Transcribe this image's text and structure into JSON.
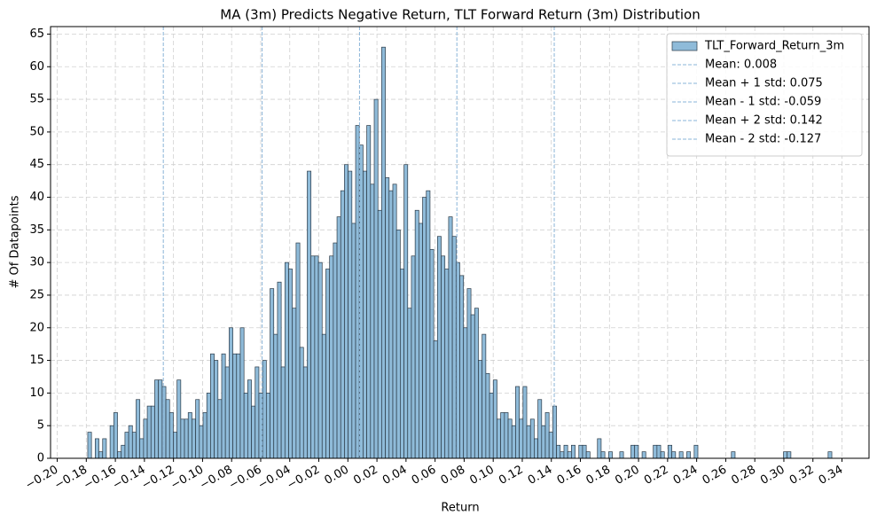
{
  "chart_data": {
    "type": "histogram",
    "title": "MA (3m) Predicts Negative Return, TLT Forward Return (3m) Distribution",
    "xlabel": "Return",
    "ylabel": "# Of Datapoints",
    "bins": [
      -0.179,
      -0.17644,
      -0.17388,
      -0.17132,
      -0.16876,
      -0.1662,
      -0.16364,
      -0.16108,
      -0.15852,
      -0.15596,
      -0.1534,
      -0.15084,
      -0.14828,
      -0.14572,
      -0.14316,
      -0.1406,
      -0.13804,
      -0.13548,
      -0.13292,
      -0.13036,
      -0.1278,
      -0.12524,
      -0.12268,
      -0.12012,
      -0.11756,
      -0.115,
      -0.11244,
      -0.10988,
      -0.10732,
      -0.10476,
      -0.1022,
      -0.09964,
      -0.09708,
      -0.09452,
      -0.09196,
      -0.0894,
      -0.08684,
      -0.08428,
      -0.08172,
      -0.07916,
      -0.0766,
      -0.07404,
      -0.07148,
      -0.06892,
      -0.06636,
      -0.0638,
      -0.06124,
      -0.05868,
      -0.05612,
      -0.05356,
      -0.051,
      -0.04844,
      -0.04588,
      -0.04332,
      -0.04076,
      -0.0382,
      -0.03564,
      -0.03308,
      -0.03052,
      -0.02796,
      -0.0254,
      -0.02284,
      -0.02028,
      -0.01772,
      -0.01516,
      -0.0126,
      -0.01004,
      -0.00748,
      -0.00492,
      -0.00236,
      0.0002,
      0.00276,
      0.00532,
      0.00788,
      0.01044,
      0.013,
      0.01556,
      0.01812,
      0.02068,
      0.02324,
      0.0258,
      0.02836,
      0.03092,
      0.03348,
      0.03604,
      0.0386,
      0.04116,
      0.04372,
      0.04628,
      0.04884,
      0.0514,
      0.05396,
      0.05652,
      0.05908,
      0.06164,
      0.0642,
      0.06676,
      0.06932,
      0.07188,
      0.07444,
      0.077,
      0.07956,
      0.08212,
      0.08468,
      0.08724,
      0.0898,
      0.09236,
      0.09492,
      0.09748,
      0.10004,
      0.1026,
      0.10516,
      0.10772,
      0.11028,
      0.11284,
      0.1154,
      0.11796,
      0.12052,
      0.12308,
      0.12564,
      0.1282,
      0.13076,
      0.13332,
      0.13588,
      0.13844,
      0.141,
      0.14356,
      0.14612,
      0.14868,
      0.15124,
      0.1538,
      0.15636,
      0.15892,
      0.16148,
      0.16404,
      0.1666,
      0.16916,
      0.17172,
      0.17428,
      0.17684,
      0.1794,
      0.18196,
      0.18452,
      0.18708,
      0.18964,
      0.1922,
      0.19476,
      0.19732,
      0.19988,
      0.20244,
      0.205,
      0.20756,
      0.21012,
      0.21268,
      0.21524,
      0.2178,
      0.22036,
      0.22292,
      0.22548,
      0.22804,
      0.2306,
      0.23316,
      0.23572,
      0.23828,
      0.24084,
      0.2434,
      0.24596,
      0.24852,
      0.25108,
      0.25364,
      0.2562,
      0.25876,
      0.26132,
      0.26388,
      0.26644,
      0.269,
      0.27156,
      0.27412,
      0.27668,
      0.27924,
      0.2818,
      0.28436,
      0.28692,
      0.28948,
      0.29204,
      0.2946,
      0.29716,
      0.29972,
      0.30228,
      0.30484,
      0.3074,
      0.30996,
      0.31252,
      0.31508,
      0.31764,
      0.3202,
      0.32276,
      0.32532,
      0.32788,
      0.33044,
      0.333
    ],
    "series": [
      {
        "name": "TLT_Forward_Return_3m",
        "color": "#8fbbd9",
        "values": [
          4,
          0,
          3,
          1,
          3,
          0,
          5,
          7,
          1,
          2,
          4,
          5,
          4,
          9,
          3,
          6,
          8,
          8,
          12,
          12,
          11,
          9,
          7,
          4,
          12,
          6,
          6,
          7,
          6,
          9,
          5,
          7,
          10,
          16,
          15,
          9,
          16,
          14,
          20,
          16,
          16,
          20,
          10,
          12,
          8,
          14,
          10,
          15,
          10,
          26,
          19,
          27,
          14,
          30,
          29,
          23,
          33,
          17,
          14,
          44,
          31,
          31,
          30,
          19,
          29,
          31,
          33,
          37,
          41,
          45,
          44,
          36,
          51,
          48,
          44,
          51,
          42,
          55,
          38,
          63,
          43,
          41,
          42,
          35,
          29,
          45,
          23,
          31,
          38,
          36,
          40,
          41,
          32,
          18,
          34,
          31,
          29,
          37,
          34,
          30,
          28,
          20,
          26,
          22,
          23,
          15,
          19,
          13,
          10,
          12,
          6,
          7,
          7,
          6,
          5,
          11,
          6,
          11,
          5,
          6,
          3,
          9,
          5,
          7,
          4,
          8,
          2,
          1,
          2,
          1,
          2,
          0,
          2,
          2,
          1,
          0,
          0,
          3,
          1,
          0,
          1,
          0,
          0,
          1,
          0,
          0,
          2,
          2,
          0,
          1,
          0,
          0,
          2,
          2,
          1,
          0,
          2,
          1,
          0,
          1,
          0,
          1,
          0,
          2,
          0,
          0,
          0,
          0,
          0,
          0,
          0,
          0,
          0,
          1,
          0,
          0,
          0,
          0,
          0,
          0,
          0,
          0,
          0,
          0,
          0,
          0,
          0,
          1,
          1,
          0,
          0,
          0,
          0,
          0,
          0,
          0,
          0,
          0,
          0,
          1
        ]
      }
    ],
    "vlines": [
      {
        "label": "Mean: 0.008",
        "x": 0.008
      },
      {
        "label": "Mean + 1 std: 0.075",
        "x": 0.075
      },
      {
        "label": "Mean - 1 std: -0.059",
        "x": -0.059
      },
      {
        "label": "Mean + 2 std: 0.142",
        "x": 0.142
      },
      {
        "label": "Mean - 2 std: -0.127",
        "x": -0.127
      }
    ],
    "vline_color": "#8ab4d8",
    "xlim": [
      -0.2046,
      0.3586
    ],
    "ylim": [
      0,
      66.15
    ],
    "xticks": [
      {
        "value": -0.2,
        "label": "−0.20"
      },
      {
        "value": -0.18,
        "label": "−0.18"
      },
      {
        "value": -0.16,
        "label": "−0.16"
      },
      {
        "value": -0.14,
        "label": "−0.14"
      },
      {
        "value": -0.12,
        "label": "−0.12"
      },
      {
        "value": -0.1,
        "label": "−0.10"
      },
      {
        "value": -0.08,
        "label": "−0.08"
      },
      {
        "value": -0.06,
        "label": "−0.06"
      },
      {
        "value": -0.04,
        "label": "−0.04"
      },
      {
        "value": -0.02,
        "label": "−0.02"
      },
      {
        "value": 0,
        "label": "0.00"
      },
      {
        "value": 0.02,
        "label": "0.02"
      },
      {
        "value": 0.04,
        "label": "0.04"
      },
      {
        "value": 0.06,
        "label": "0.06"
      },
      {
        "value": 0.08,
        "label": "0.08"
      },
      {
        "value": 0.1,
        "label": "0.10"
      },
      {
        "value": 0.12,
        "label": "0.12"
      },
      {
        "value": 0.14,
        "label": "0.14"
      },
      {
        "value": 0.16,
        "label": "0.16"
      },
      {
        "value": 0.18,
        "label": "0.18"
      },
      {
        "value": 0.2,
        "label": "0.20"
      },
      {
        "value": 0.22,
        "label": "0.22"
      },
      {
        "value": 0.24,
        "label": "0.24"
      },
      {
        "value": 0.26,
        "label": "0.26"
      },
      {
        "value": 0.28,
        "label": "0.28"
      },
      {
        "value": 0.3,
        "label": "0.30"
      },
      {
        "value": 0.32,
        "label": "0.32"
      },
      {
        "value": 0.34,
        "label": "0.34"
      }
    ],
    "yticks": [
      0,
      5,
      10,
      15,
      20,
      25,
      30,
      35,
      40,
      45,
      50,
      55,
      60,
      65
    ],
    "grid": true,
    "legend": "upper right"
  }
}
